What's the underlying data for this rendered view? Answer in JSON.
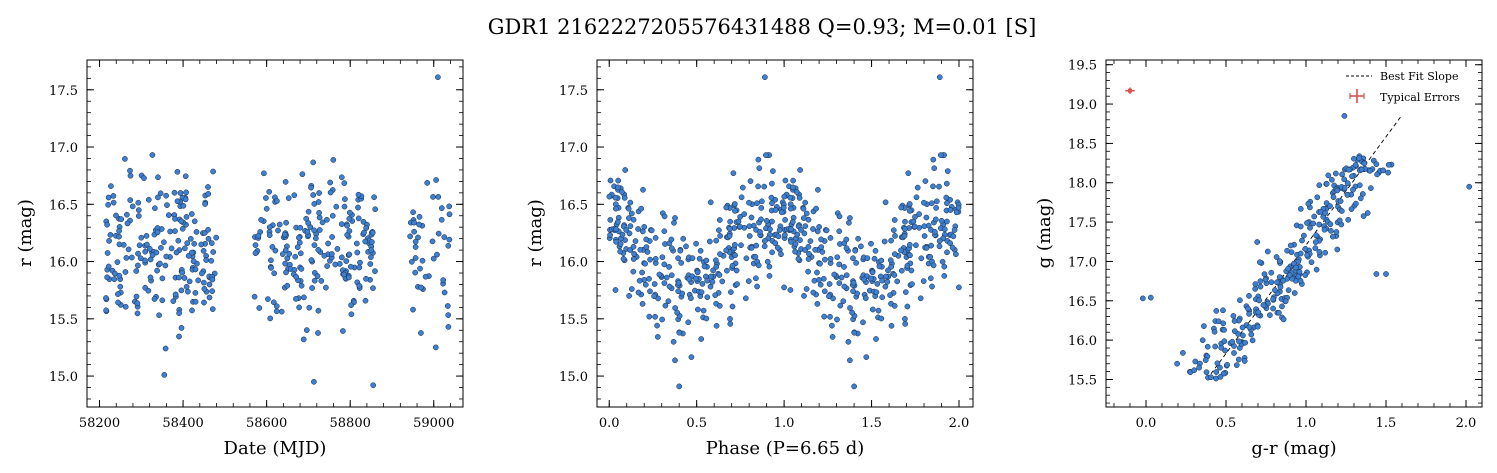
{
  "figure": {
    "title": "GDR1 2162227205576431488  Q=0.93; M=0.01 [S]"
  },
  "colors": {
    "marker_fill": "#3d7fd1",
    "marker_edge": "#15263d",
    "fit_line": "#000000",
    "error_bar": "#d9534f"
  },
  "chart_data": [
    {
      "type": "scatter",
      "xlabel": "Date (MJD)",
      "ylabel": "r (mag)",
      "xlim": [
        58170,
        59070
      ],
      "ylim": [
        17.76,
        14.73
      ],
      "y_inverted": true,
      "xticks": [
        58200,
        58400,
        58600,
        58800,
        59000
      ],
      "yticks": [
        15.0,
        15.5,
        16.0,
        16.5,
        17.0,
        17.5
      ],
      "ytick_labels": [
        "15.0",
        "15.5",
        "16.0",
        "16.5",
        "17.0",
        "17.5"
      ],
      "observing_seasons": [
        {
          "x_range": [
            58215,
            58480
          ],
          "density": "high"
        },
        {
          "x_range": [
            58570,
            58860
          ],
          "density": "high"
        },
        {
          "x_range": [
            58940,
            59040
          ],
          "density": "low"
        }
      ],
      "notable_points": [
        {
          "x": 58855,
          "y": 14.92
        },
        {
          "x": 58713,
          "y": 14.95
        },
        {
          "x": 58355,
          "y": 15.01
        },
        {
          "x": 59005,
          "y": 15.25
        },
        {
          "x": 59010,
          "y": 17.61
        }
      ]
    },
    {
      "type": "scatter",
      "xlabel": "Phase (P=6.65 d)",
      "ylabel": "r (mag)",
      "xlim": [
        -0.07,
        2.08
      ],
      "ylim": [
        17.76,
        14.73
      ],
      "y_inverted": true,
      "xticks": [
        0.0,
        0.5,
        1.0,
        1.5,
        2.0
      ],
      "xtick_labels": [
        "0.0",
        "0.5",
        "1.0",
        "1.5",
        "2.0"
      ],
      "yticks": [
        15.0,
        15.5,
        16.0,
        16.5,
        17.0,
        17.5
      ],
      "ytick_labels": [
        "15.0",
        "15.5",
        "16.0",
        "16.5",
        "17.0",
        "17.5"
      ],
      "period_days": 6.65,
      "notable_points": [
        {
          "x": 0.89,
          "y": 17.61
        },
        {
          "x": 1.89,
          "y": 17.61
        },
        {
          "x": 0.4,
          "y": 14.91
        },
        {
          "x": 1.4,
          "y": 14.91
        }
      ]
    },
    {
      "type": "scatter",
      "xlabel": "g-r (mag)",
      "ylabel": "g (mag)",
      "xlim": [
        -0.25,
        2.1
      ],
      "ylim": [
        19.56,
        15.15
      ],
      "y_inverted": true,
      "xticks": [
        0.0,
        0.5,
        1.0,
        1.5,
        2.0
      ],
      "xtick_labels": [
        "0.0",
        "0.5",
        "1.0",
        "1.5",
        "2.0"
      ],
      "yticks": [
        15.5,
        16.0,
        16.5,
        17.0,
        17.5,
        18.0,
        18.5,
        19.0,
        19.5
      ],
      "ytick_labels": [
        "15.5",
        "16.0",
        "16.5",
        "17.0",
        "17.5",
        "18.0",
        "18.5",
        "19.0",
        "19.5"
      ],
      "best_fit_line": {
        "x": [
          0.38,
          1.6
        ],
        "y": [
          15.5,
          18.86
        ]
      },
      "typical_error": {
        "x": -0.1,
        "y": 19.17,
        "xerr": 0.03,
        "yerr": 0.04
      },
      "legend": {
        "position": "top-right",
        "entries": [
          "Best Fit Slope",
          "Typical Errors"
        ]
      },
      "notable_points": [
        {
          "x": -0.02,
          "y": 16.53
        },
        {
          "x": 0.03,
          "y": 16.54
        },
        {
          "x": 2.02,
          "y": 17.95
        },
        {
          "x": 1.24,
          "y": 18.85
        },
        {
          "x": 1.44,
          "y": 16.84
        },
        {
          "x": 1.5,
          "y": 16.84
        }
      ]
    }
  ]
}
